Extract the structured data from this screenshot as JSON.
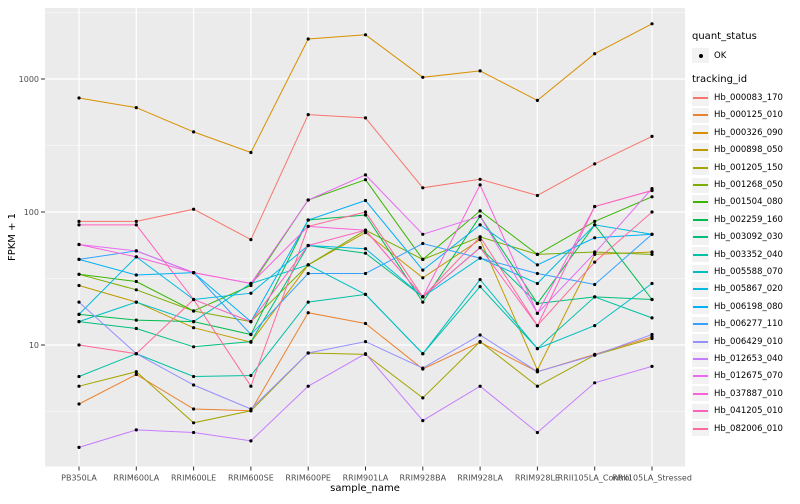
{
  "figure": {
    "background": "#FFFFFF",
    "panel_background": "#EBEBEB",
    "gridline_color": "#FFFFFF",
    "tick_color": "#333333",
    "tick_label_color": "#4D4D4D",
    "point_color": "#000000",
    "legend_key_background": "#F2F2F2"
  },
  "chart_data": {
    "type": "line",
    "title": "",
    "xlabel": "sample_name",
    "ylabel": "FPKM + 1",
    "y_scale": "log10",
    "y_ticks": [
      10,
      100,
      1000
    ],
    "y_tick_labels": [
      "10",
      "100",
      "1000"
    ],
    "y_minor_breaks": [
      3.162,
      31.62,
      316.2,
      3162
    ],
    "ylim": [
      1.5,
      3200
    ],
    "grid": "major-and-minor, white on grey panel",
    "legend_position": "right",
    "point_marker": "small black dot on every vertex (quant_status = OK)",
    "categories": [
      "PB350LA",
      "RRIM600LA",
      "RRIM600LE",
      "RRIM600SE",
      "RRIM600PE",
      "RRIM901LA",
      "RRIM928BA",
      "RRIM928LA",
      "RRIM928LE",
      "RRII105LA_Control",
      "RRII105LA_Stressed"
    ],
    "series": [
      {
        "name": "Hb_000083_170",
        "color": "#F8766D",
        "values": [
          85,
          85,
          105,
          62,
          540,
          510,
          152,
          176,
          133,
          230,
          370
        ]
      },
      {
        "name": "Hb_000125_010",
        "color": "#EA8331",
        "values": [
          3.6,
          6.0,
          3.3,
          3.2,
          17.5,
          14.5,
          6.6,
          10.5,
          6.3,
          8.5,
          11.5
        ]
      },
      {
        "name": "Hb_000326_090",
        "color": "#D89000",
        "values": [
          720,
          610,
          400,
          280,
          2000,
          2150,
          1030,
          1150,
          690,
          1550,
          2600
        ]
      },
      {
        "name": "Hb_000898_050",
        "color": "#C09B00",
        "values": [
          28,
          21,
          13.5,
          10.5,
          40,
          70,
          32,
          62,
          6.5,
          48,
          50
        ]
      },
      {
        "name": "Hb_001205_150",
        "color": "#A3A500",
        "values": [
          4.9,
          6.3,
          2.6,
          3.2,
          8.7,
          8.5,
          4.0,
          10.6,
          4.9,
          8.4,
          11.2
        ]
      },
      {
        "name": "Hb_001268_050",
        "color": "#7CAE00",
        "values": [
          34,
          26,
          18,
          15,
          40,
          73,
          44,
          65,
          48,
          50,
          48
        ]
      },
      {
        "name": "Hb_001504_080",
        "color": "#39B600",
        "values": [
          34,
          30,
          18,
          28,
          123,
          175,
          44,
          102,
          48,
          85,
          130
        ]
      },
      {
        "name": "Hb_002259_160",
        "color": "#00BB4E",
        "values": [
          17,
          15.4,
          15,
          12,
          87,
          95,
          21,
          93,
          20.5,
          80,
          22
        ]
      },
      {
        "name": "Hb_003092_030",
        "color": "#00BF7D",
        "values": [
          15,
          13.3,
          9.7,
          10.6,
          56,
          49,
          23,
          54,
          20.5,
          23,
          22
        ]
      },
      {
        "name": "Hb_003352_040",
        "color": "#00C1A3",
        "values": [
          5.8,
          8.6,
          5.8,
          5.9,
          21,
          24,
          8.6,
          27.5,
          9.4,
          23,
          16
        ]
      },
      {
        "name": "Hb_005588_070",
        "color": "#00BFC4",
        "values": [
          15,
          21,
          15,
          29,
          40,
          24,
          8.6,
          31,
          9.4,
          14,
          29
        ]
      },
      {
        "name": "Hb_005867_020",
        "color": "#00BAE0",
        "values": [
          17,
          46,
          22,
          24.5,
          56,
          53,
          23,
          45,
          29,
          80,
          68
        ]
      },
      {
        "name": "Hb_006198_080",
        "color": "#00B0F6",
        "values": [
          44,
          33.6,
          35,
          15,
          87,
          122,
          36.6,
          80,
          40,
          64,
          68
        ]
      },
      {
        "name": "Hb_006277_110",
        "color": "#35A2FF",
        "values": [
          44,
          51,
          35,
          12,
          34.5,
          34.5,
          58,
          45,
          34.5,
          28.5,
          68
        ]
      },
      {
        "name": "Hb_006429_010",
        "color": "#9590FF",
        "values": [
          21,
          8.6,
          5.0,
          3.3,
          8.7,
          10.6,
          6.7,
          11.9,
          6.3,
          8.4,
          12
        ]
      },
      {
        "name": "Hb_012653_040",
        "color": "#C77CFF",
        "values": [
          1.7,
          2.3,
          2.2,
          1.9,
          4.9,
          8.6,
          2.7,
          4.9,
          2.2,
          5.2,
          6.9
        ]
      },
      {
        "name": "Hb_012675_070",
        "color": "#E76BF3",
        "values": [
          57,
          51,
          35,
          29,
          123,
          190,
          68,
          93,
          17.3,
          49,
          150
        ]
      },
      {
        "name": "Hb_037887_010",
        "color": "#FA62DB",
        "values": [
          57,
          46,
          35,
          29,
          78,
          73,
          23,
          160,
          17.3,
          110,
          145
        ]
      },
      {
        "name": "Hb_041205_010",
        "color": "#FF62BC",
        "values": [
          80,
          80,
          22,
          15,
          56,
          73,
          23,
          54,
          14,
          110,
          145
        ]
      },
      {
        "name": "Hb_082006_010",
        "color": "#FF6A98",
        "values": [
          10,
          8.6,
          22,
          4.9,
          78,
          100,
          23,
          65,
          14,
          42,
          100
        ]
      }
    ]
  },
  "legend": {
    "quant_status": {
      "title": "quant_status",
      "items": [
        {
          "label": "OK",
          "marker": "black-point"
        }
      ]
    },
    "tracking": {
      "title": "tracking_id"
    }
  }
}
